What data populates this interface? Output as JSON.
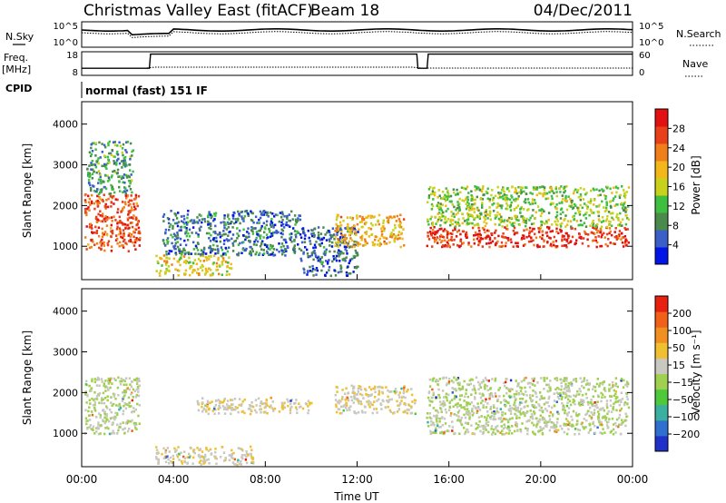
{
  "header": {
    "station": "Christmas Valley East (fitACF)",
    "beam": "Beam 18",
    "date": "04/Dec/2011"
  },
  "noise_panel": {
    "left_label": "N.Sky",
    "left_ticks": [
      "10^5",
      "10^0"
    ],
    "right_ticks": [
      "10^5",
      "10^0"
    ],
    "right_label": "N.Search"
  },
  "freq_panel": {
    "left_label_1": "Freq.",
    "left_label_2": "[MHz]",
    "left_ticks": [
      "18",
      "8"
    ],
    "right_ticks": [
      "60",
      "0"
    ],
    "right_label": "Nave",
    "freq_steps": [
      {
        "t": 0,
        "f": 11
      },
      {
        "t": 2.95,
        "f": 11
      },
      {
        "t": 3.0,
        "f": 17
      },
      {
        "t": 14.6,
        "f": 17
      },
      {
        "t": 14.65,
        "f": 11
      },
      {
        "t": 15.05,
        "f": 11
      },
      {
        "t": 15.1,
        "f": 17
      },
      {
        "t": 24,
        "f": 17
      }
    ]
  },
  "cpid": {
    "label": "CPID",
    "mode": "normal (fast) 151 IF"
  },
  "chart_data": [
    {
      "type": "heatmap",
      "name": "power",
      "ylabel": "Slant Range [km]",
      "xlabel": "",
      "ylim": [
        180,
        4550
      ],
      "xlim": [
        0,
        24
      ],
      "y_ticks": [
        "1000",
        "2000",
        "3000",
        "4000"
      ],
      "y_tick_values": [
        1000,
        2000,
        3000,
        4000
      ],
      "colorbar": {
        "label": "Power [dB]",
        "range": [
          0,
          32
        ],
        "ticks": [
          "4",
          "8",
          "12",
          "16",
          "20",
          "24",
          "28"
        ],
        "tick_values": [
          4,
          8,
          12,
          16,
          20,
          24,
          28
        ],
        "colors": [
          "#0015e6",
          "#3b5ec7",
          "#4a8a4a",
          "#3fbf3f",
          "#c8d21a",
          "#f2b81a",
          "#f07f1a",
          "#e8401a",
          "#e21010"
        ]
      },
      "regions": [
        {
          "t0": 0.1,
          "t1": 2.5,
          "r0": 900,
          "r1": 2300,
          "v": 26
        },
        {
          "t0": 0.2,
          "t1": 2.2,
          "r0": 2300,
          "r1": 3600,
          "v": 10
        },
        {
          "t0": 3.2,
          "t1": 6.5,
          "r0": 300,
          "r1": 800,
          "v": 18
        },
        {
          "t0": 3.5,
          "t1": 9.5,
          "r0": 800,
          "r1": 1900,
          "v": 7
        },
        {
          "t0": 9.5,
          "t1": 12.0,
          "r0": 300,
          "r1": 1500,
          "v": 6
        },
        {
          "t0": 11.0,
          "t1": 14.0,
          "r0": 1000,
          "r1": 1800,
          "v": 20
        },
        {
          "t0": 15.0,
          "t1": 23.8,
          "r0": 1000,
          "r1": 1500,
          "v": 28
        },
        {
          "t0": 15.0,
          "t1": 23.8,
          "r0": 1500,
          "r1": 2500,
          "v": 14
        }
      ]
    },
    {
      "type": "heatmap",
      "name": "velocity",
      "ylabel": "Slant Range [km]",
      "xlabel": "Time UT",
      "ylim": [
        180,
        4550
      ],
      "xlim": [
        0,
        24
      ],
      "y_ticks": [
        "1000",
        "2000",
        "3000",
        "4000"
      ],
      "y_tick_values": [
        1000,
        2000,
        3000,
        4000
      ],
      "x_ticks": [
        "00:00",
        "04:00",
        "08:00",
        "12:00",
        "16:00",
        "20:00",
        "00:00"
      ],
      "x_tick_values": [
        0,
        4,
        8,
        12,
        16,
        20,
        24
      ],
      "colorbar": {
        "label": "Velocity [m s⁻¹]",
        "range": [
          -250,
          250
        ],
        "ticks": [
          "200",
          "100",
          "50",
          "15",
          "−15",
          "−50",
          "−100",
          "−200"
        ],
        "tick_values": [
          200,
          100,
          50,
          15,
          -15,
          -50,
          -100,
          -200
        ],
        "colors": [
          "#2030c8",
          "#2e6fd0",
          "#3bb0a0",
          "#50c83c",
          "#a0d050",
          "#c8c8c0",
          "#f0c030",
          "#f09020",
          "#f06018",
          "#e82010"
        ]
      },
      "regions": [
        {
          "t0": 0.1,
          "t1": 2.5,
          "r0": 1000,
          "r1": 2400,
          "v": 0
        },
        {
          "t0": 3.2,
          "t1": 7.5,
          "r0": 250,
          "r1": 700,
          "v": 40
        },
        {
          "t0": 5.0,
          "t1": 10.0,
          "r0": 1500,
          "r1": 1900,
          "v": 45
        },
        {
          "t0": 11.0,
          "t1": 14.5,
          "r0": 1500,
          "r1": 2200,
          "v": 40
        },
        {
          "t0": 15.0,
          "t1": 23.8,
          "r0": 1000,
          "r1": 2400,
          "v": 0
        }
      ]
    }
  ]
}
